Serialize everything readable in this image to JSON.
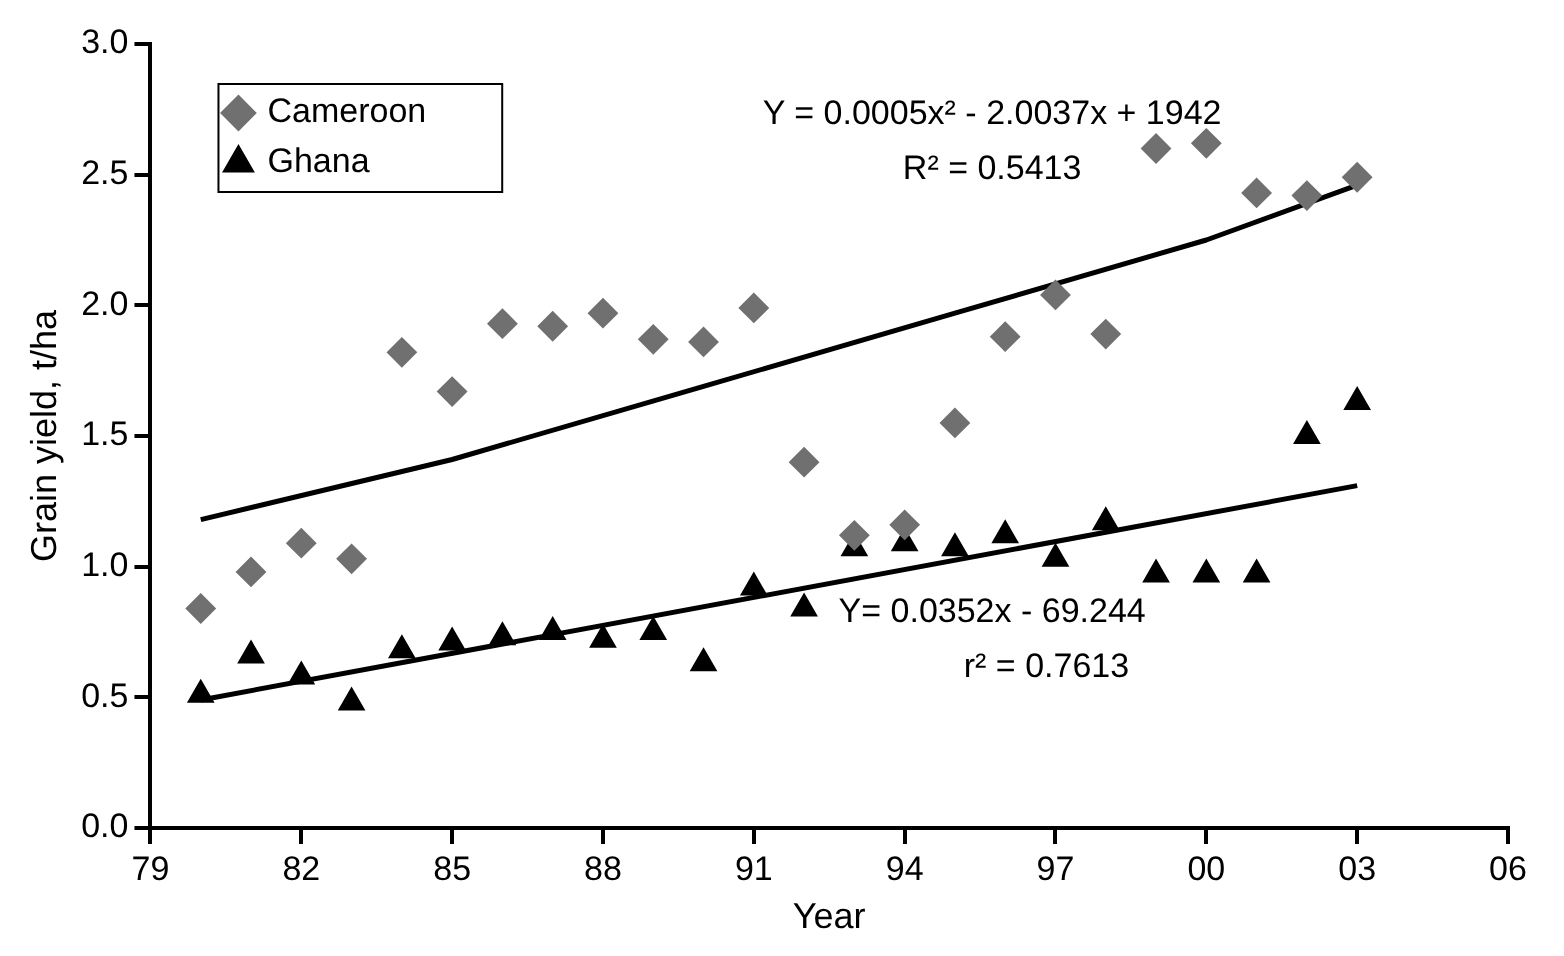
{
  "chart_data": {
    "type": "scatter",
    "xlabel": "Year",
    "ylabel": "Grain yield, t/ha",
    "x": [
      1980,
      1981,
      1982,
      1983,
      1984,
      1985,
      1986,
      1987,
      1988,
      1989,
      1990,
      1991,
      1992,
      1993,
      1994,
      1995,
      1996,
      1997,
      1998,
      1999,
      2000,
      2001,
      2002,
      2003
    ],
    "series": [
      {
        "name": "Cameroon",
        "color": "#707070",
        "marker": "diamond",
        "values": [
          0.84,
          0.98,
          1.09,
          1.03,
          1.82,
          1.67,
          1.93,
          1.92,
          1.97,
          1.87,
          1.86,
          1.99,
          1.4,
          1.12,
          1.16,
          1.55,
          1.88,
          2.04,
          1.89,
          2.6,
          2.62,
          2.43,
          2.42,
          2.49
        ]
      },
      {
        "name": "Ghana",
        "color": "#000000",
        "marker": "triangle",
        "values": [
          0.51,
          0.66,
          0.58,
          0.48,
          0.68,
          0.71,
          0.73,
          0.75,
          0.72,
          0.75,
          0.63,
          0.92,
          0.84,
          1.07,
          1.09,
          1.07,
          1.12,
          1.03,
          1.17,
          0.97,
          0.97,
          0.97,
          1.5,
          1.63
        ]
      },
      {
        "type": "line",
        "color": "#000000",
        "x": [
          1980,
          1985,
          1990,
          1995,
          2000,
          2003
        ],
        "values": [
          1.18,
          1.41,
          1.69,
          1.97,
          2.25,
          2.46
        ]
      },
      {
        "type": "line",
        "color": "#000000",
        "x": [
          1980,
          2003
        ],
        "values": [
          0.49,
          1.31
        ]
      }
    ],
    "annotations": [
      "Y = 0.0005x² - 2.0037x + 1942",
      "R² = 0.5413",
      "Y= 0.0352x - 69.244",
      "r² = 0.7613"
    ],
    "xlim": [
      1979,
      2006
    ],
    "xticks": [
      {
        "value": 1979,
        "label": "79"
      },
      {
        "value": 1982,
        "label": "82"
      },
      {
        "value": 1985,
        "label": "85"
      },
      {
        "value": 1988,
        "label": "88"
      },
      {
        "value": 1991,
        "label": "91"
      },
      {
        "value": 1994,
        "label": "94"
      },
      {
        "value": 1997,
        "label": "97"
      },
      {
        "value": 2000,
        "label": "00"
      },
      {
        "value": 2003,
        "label": "03"
      },
      {
        "value": 2006,
        "label": "06"
      }
    ],
    "ylim": [
      0,
      3
    ],
    "yticks": [
      {
        "value": 0,
        "label": "0.0"
      },
      {
        "value": 0.5,
        "label": "0.5"
      },
      {
        "value": 1,
        "label": "1.0"
      },
      {
        "value": 1.5,
        "label": "1.5"
      },
      {
        "value": 2,
        "label": "2.0"
      },
      {
        "value": 2.5,
        "label": "2.5"
      },
      {
        "value": 3,
        "label": "3.0"
      }
    ],
    "grid": false,
    "legend": "top left"
  }
}
